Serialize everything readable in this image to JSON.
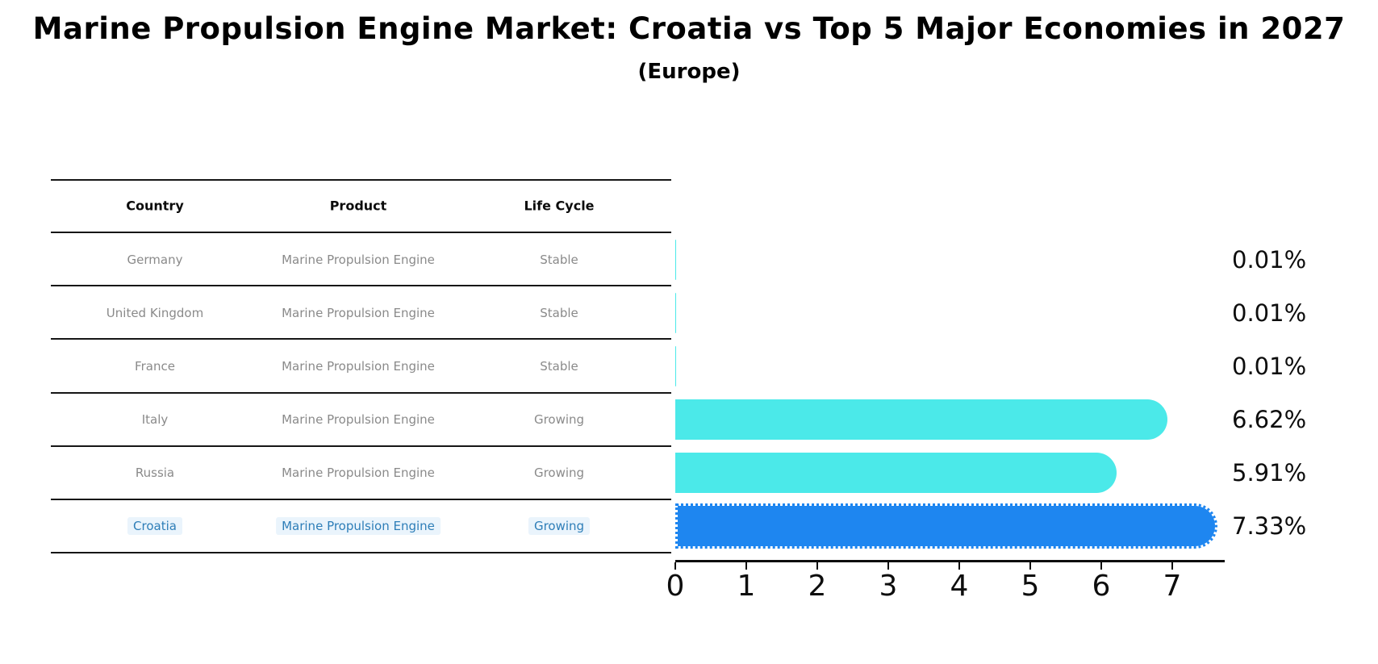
{
  "title": "Marine Propulsion Engine Market: Croatia vs Top 5 Major Economies in 2027",
  "subtitle": "(Europe)",
  "table": {
    "columns": [
      "Country",
      "Product",
      "Life Cycle"
    ],
    "rows": [
      {
        "country": "Germany",
        "product": "Marine Propulsion Engine",
        "life_cycle": "Stable",
        "highlight": false
      },
      {
        "country": "United Kingdom",
        "product": "Marine Propulsion Engine",
        "life_cycle": "Stable",
        "highlight": false
      },
      {
        "country": "France",
        "product": "Marine Propulsion Engine",
        "life_cycle": "Stable",
        "highlight": false
      },
      {
        "country": "Italy",
        "product": "Marine Propulsion Engine",
        "life_cycle": "Growing",
        "highlight": false
      },
      {
        "country": "Russia",
        "product": "Marine Propulsion Engine",
        "life_cycle": "Growing",
        "highlight": false
      },
      {
        "country": "Croatia",
        "product": "Marine Propulsion Engine",
        "life_cycle": "Growing",
        "highlight": true
      }
    ]
  },
  "chart_data": {
    "type": "bar",
    "orientation": "horizontal",
    "title": "Marine Propulsion Engine Market: Croatia vs Top 5 Major Economies in 2027 (Europe)",
    "categories": [
      "Germany",
      "United Kingdom",
      "France",
      "Italy",
      "Russia",
      "Croatia"
    ],
    "values": [
      0.01,
      0.01,
      0.01,
      6.62,
      5.91,
      7.33
    ],
    "value_labels": [
      "0.01%",
      "0.01%",
      "0.01%",
      "6.62%",
      "5.91%",
      "7.33%"
    ],
    "xlim": [
      0,
      7.73
    ],
    "xticks": [
      0,
      1,
      2,
      3,
      4,
      5,
      6,
      7
    ],
    "xtick_labels": [
      "0",
      "1",
      "2",
      "3",
      "4",
      "5",
      "6",
      "7"
    ],
    "grid": false,
    "legend": "none",
    "highlight_index": 5,
    "highlight_category": "Croatia",
    "bar_color_default": "#4be9e9",
    "bar_color_highlight": "#1e86f0",
    "highlight_border_style": "dotted"
  },
  "colors": {
    "background": "#ffffff",
    "bar_cyan": "#4be9e9",
    "bar_blue": "#1e86f0",
    "row_text_gray": "#8a8a8a",
    "highlight_text_blue": "#2e7eb8",
    "axis_black": "#0d0d0d"
  }
}
